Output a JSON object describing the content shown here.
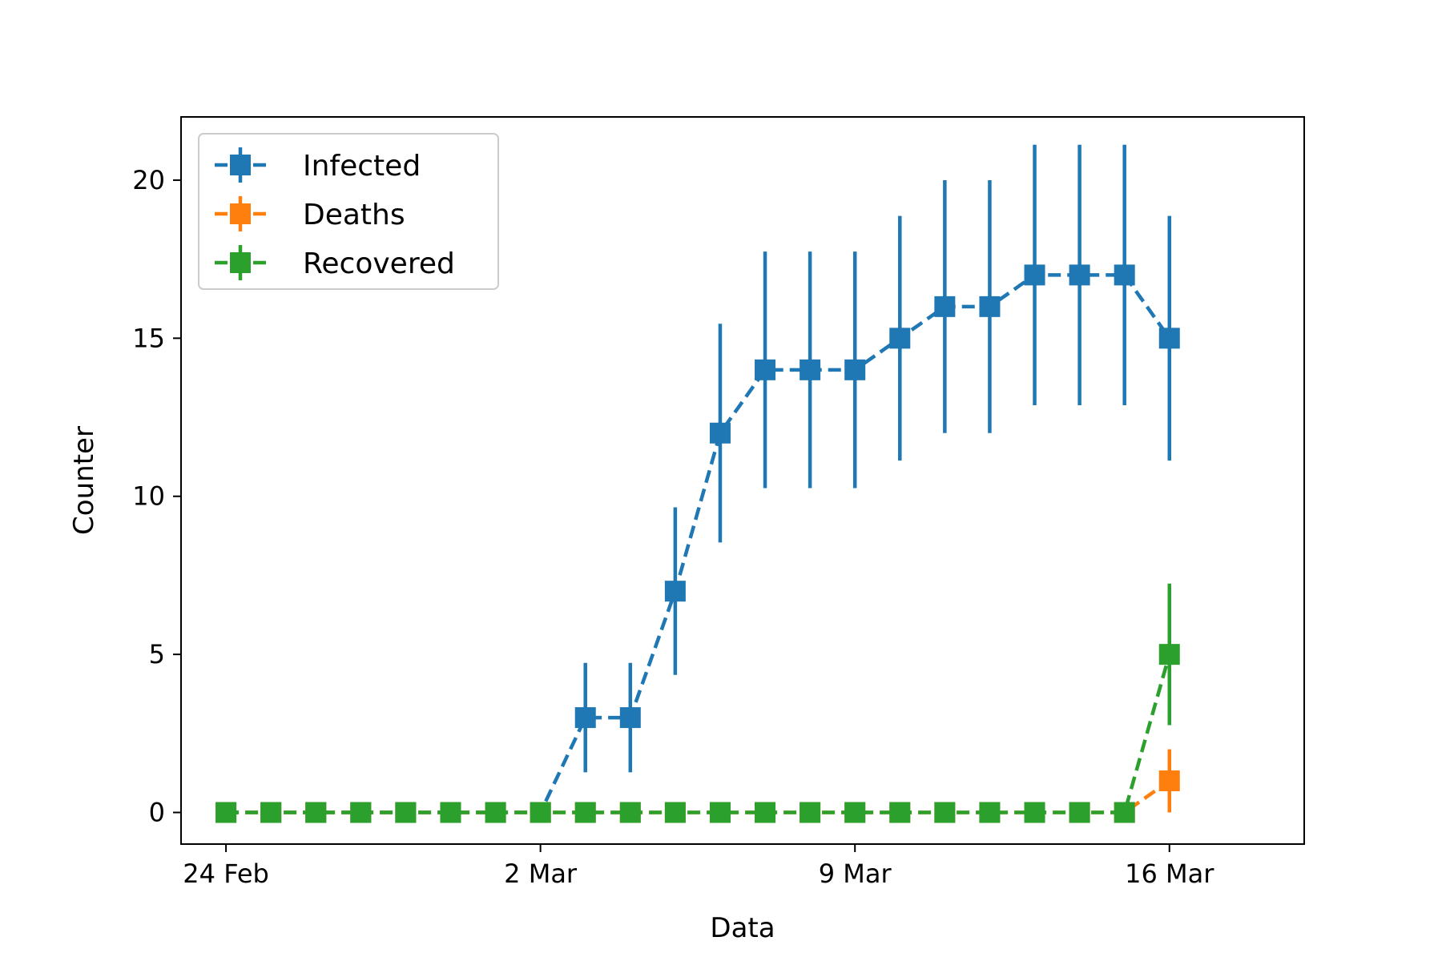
{
  "chart_data": {
    "type": "line",
    "xlabel": "Data",
    "ylabel": "Counter",
    "x": [
      "2020-02-24",
      "2020-02-25",
      "2020-02-26",
      "2020-02-27",
      "2020-02-28",
      "2020-02-29",
      "2020-03-01",
      "2020-03-02",
      "2020-03-03",
      "2020-03-04",
      "2020-03-05",
      "2020-03-06",
      "2020-03-07",
      "2020-03-08",
      "2020-03-09",
      "2020-03-10",
      "2020-03-11",
      "2020-03-12",
      "2020-03-13",
      "2020-03-14",
      "2020-03-15",
      "2020-03-16"
    ],
    "xlim": [
      "2020-02-23",
      "2020-03-19"
    ],
    "ylim": [
      -1,
      22
    ],
    "x_ticks": [
      {
        "date": "2020-02-24",
        "label": "24 Feb"
      },
      {
        "date": "2020-03-02",
        "label": "2 Mar"
      },
      {
        "date": "2020-03-09",
        "label": "9 Mar"
      },
      {
        "date": "2020-03-16",
        "label": "16 Mar"
      }
    ],
    "y_ticks": [
      0,
      5,
      10,
      15,
      20
    ],
    "grid": false,
    "legend_position": "top-left",
    "series": [
      {
        "name": "Infected",
        "color": "#1f77b4",
        "values": [
          0,
          0,
          0,
          0,
          0,
          0,
          0,
          0,
          3,
          3,
          7,
          12,
          14,
          14,
          14,
          15,
          16,
          16,
          17,
          17,
          17,
          15
        ],
        "errors": [
          0,
          0,
          0,
          0,
          0,
          0,
          0,
          0,
          1.73,
          1.73,
          2.65,
          3.46,
          3.74,
          3.74,
          3.74,
          3.87,
          4,
          4,
          4.12,
          4.12,
          4.12,
          3.87
        ]
      },
      {
        "name": "Deaths",
        "color": "#ff7f0e",
        "values": [
          0,
          0,
          0,
          0,
          0,
          0,
          0,
          0,
          0,
          0,
          0,
          0,
          0,
          0,
          0,
          0,
          0,
          0,
          0,
          0,
          0,
          1
        ],
        "errors": [
          0,
          0,
          0,
          0,
          0,
          0,
          0,
          0,
          0,
          0,
          0,
          0,
          0,
          0,
          0,
          0,
          0,
          0,
          0,
          0,
          0,
          1
        ]
      },
      {
        "name": "Recovered",
        "color": "#2ca02c",
        "values": [
          0,
          0,
          0,
          0,
          0,
          0,
          0,
          0,
          0,
          0,
          0,
          0,
          0,
          0,
          0,
          0,
          0,
          0,
          0,
          0,
          0,
          5
        ],
        "errors": [
          0,
          0,
          0,
          0,
          0,
          0,
          0,
          0,
          0,
          0,
          0,
          0,
          0,
          0,
          0,
          0,
          0,
          0,
          0,
          0,
          0,
          2.24
        ]
      }
    ]
  }
}
